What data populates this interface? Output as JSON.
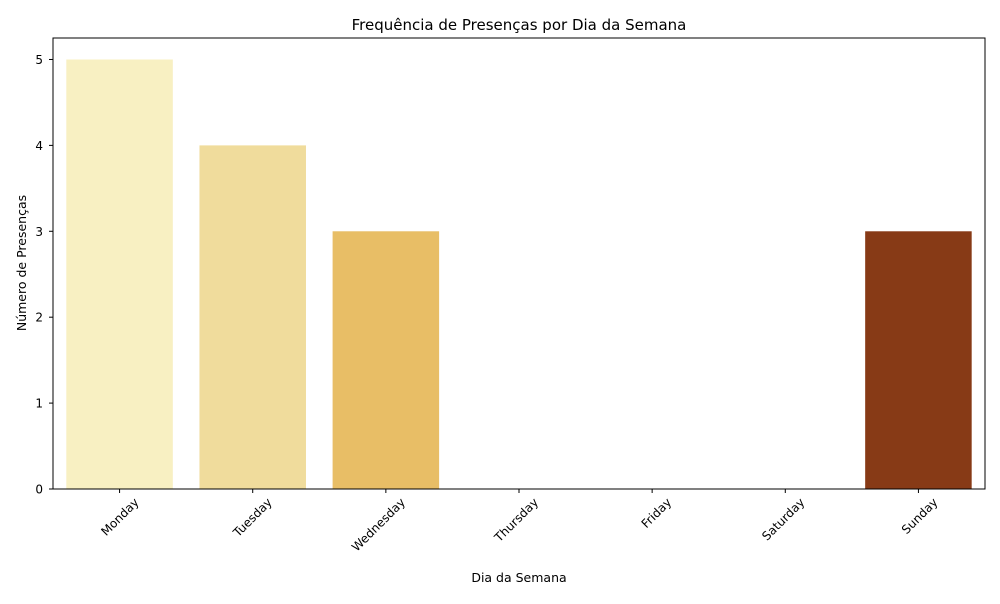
{
  "chart_data": {
    "type": "bar",
    "title": "Frequência de Presenças por Dia da Semana",
    "xlabel": "Dia da Semana",
    "ylabel": "Número de Presenças",
    "categories": [
      "Monday",
      "Tuesday",
      "Wednesday",
      "Thursday",
      "Friday",
      "Saturday",
      "Sunday"
    ],
    "values": [
      5,
      4,
      3,
      0,
      0,
      0,
      3
    ],
    "colors": [
      "#f8f0c2",
      "#f0dc9c",
      "#e8be66",
      "#e0a040",
      "#c97a22",
      "#a85a18",
      "#873a16"
    ],
    "ylim": [
      0,
      5.25
    ],
    "yticks": [
      "0",
      "1",
      "2",
      "3",
      "4",
      "5"
    ],
    "grid": false,
    "legend": "none"
  }
}
